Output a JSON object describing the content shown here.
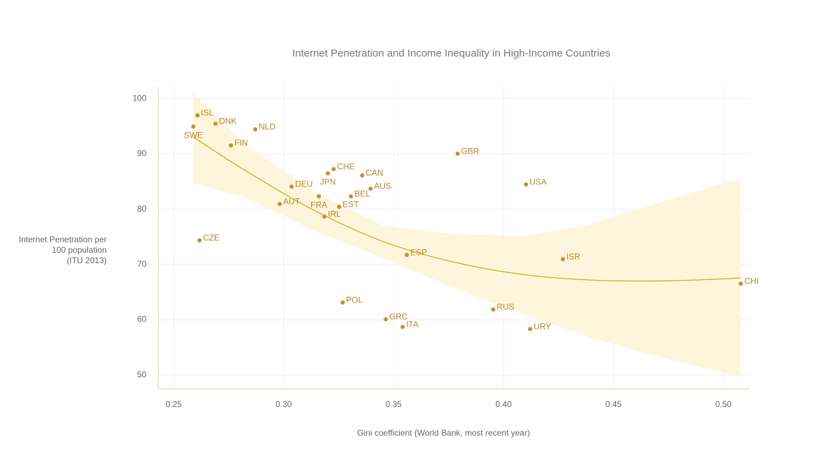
{
  "chart_data": {
    "type": "scatter",
    "title": "Internet Penetration and Income Inequality in High-Income Countries",
    "x_label": "Gini coefficient (World Bank, most recent year)",
    "y_label": [
      "Internet Penetration per",
      "100 population",
      "(ITU 2013)"
    ],
    "xlim": [
      0.243,
      0.512
    ],
    "ylim": [
      47.5,
      102.3
    ],
    "xticks": [
      {
        "value": 0.25,
        "label": "0.25"
      },
      {
        "value": 0.3,
        "label": "0.30"
      },
      0.35,
      {
        "value": 0.4,
        "label": "0.40"
      },
      0.45,
      {
        "value": 0.5,
        "label": "0.50"
      }
    ],
    "yticks": [
      50,
      60,
      70,
      80,
      90,
      100
    ],
    "grid": true,
    "color": "#d08a2e",
    "labels": [
      "ISL",
      "SWE",
      "DNK",
      "NLD",
      "FIN",
      "GBR",
      "CHE",
      "JPN",
      "CAN",
      "DEU",
      "AUS",
      "USA",
      "BEL",
      "FRA",
      "AUT",
      "EST",
      "IRL",
      "CZE",
      "ESP",
      "ISR",
      "CHI",
      "POL",
      "RUS",
      "GRC",
      "ITA",
      "URY"
    ],
    "x": [
      0.2608,
      0.2589,
      0.269,
      0.2871,
      0.276,
      0.3791,
      0.3227,
      0.3201,
      0.3357,
      0.3036,
      0.3395,
      0.4102,
      0.3306,
      0.316,
      0.2982,
      0.3252,
      0.3185,
      0.2617,
      0.356,
      0.427,
      0.5079,
      0.3268,
      0.3953,
      0.3464,
      0.3541,
      0.4121
    ],
    "values": [
      96.97,
      94.95,
      95.45,
      94.44,
      91.54,
      90.03,
      87.25,
      86.49,
      86.11,
      84.09,
      83.71,
      84.47,
      82.32,
      82.32,
      80.93,
      80.43,
      78.66,
      74.37,
      71.72,
      70.96,
      66.54,
      63.13,
      61.87,
      60.1,
      58.71,
      58.33
    ],
    "trend": {
      "color": "#d9a520",
      "band_color": "#fdf6dc",
      "x": [
        0.2589,
        0.282,
        0.3138,
        0.3455,
        0.3772,
        0.409,
        0.4407,
        0.4756,
        0.5079
      ],
      "values": [
        93.06,
        87.12,
        79.8,
        74.12,
        70.45,
        68.18,
        67.17,
        67.05,
        67.55
      ],
      "upper": [
        101.0,
        91.9,
        83.3,
        77.0,
        75.5,
        75.1,
        77.4,
        81.8,
        85.6
      ],
      "lower": [
        84.7,
        82.2,
        76.1,
        71.1,
        65.8,
        61.0,
        56.6,
        52.8,
        49.6
      ]
    }
  }
}
